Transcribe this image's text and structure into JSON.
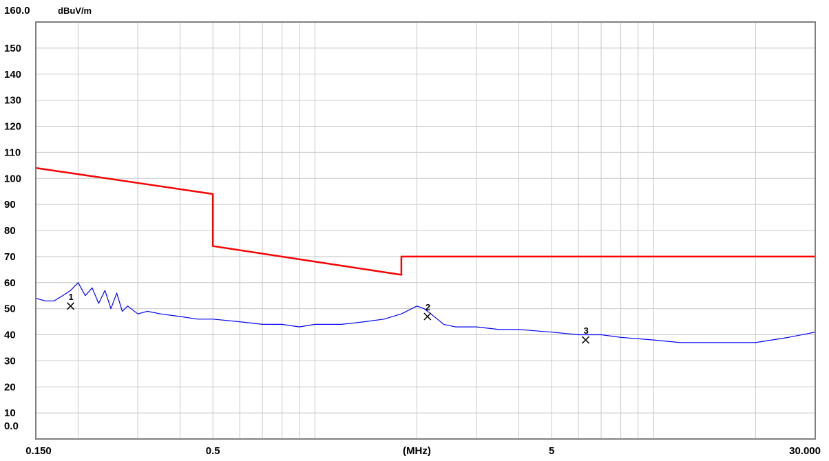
{
  "chart_data": {
    "type": "line",
    "y_unit": "dBuV/m",
    "y_top_label": "160.0",
    "y_bottom_label": "0.0",
    "xlabel": "(MHz)",
    "x_scale": "log",
    "xlim": [
      0.15,
      30
    ],
    "ylim": [
      0,
      160
    ],
    "grid": true,
    "y_ticks": [
      10,
      20,
      30,
      40,
      50,
      60,
      70,
      80,
      90,
      100,
      110,
      120,
      130,
      140,
      150
    ],
    "x_tick_labels": [
      {
        "value": 0.15,
        "label": "0.150"
      },
      {
        "value": 0.5,
        "label": "0.5"
      },
      {
        "value": 2.0,
        "label": "(MHz)"
      },
      {
        "value": 5,
        "label": "5"
      },
      {
        "value": 30,
        "label": "30.000"
      }
    ],
    "colors": {
      "limit": "#ff0000",
      "measurement": "#0000ff",
      "grid": "#c8c8c8",
      "frame": "#808080"
    },
    "series": [
      {
        "kind": "limit",
        "x": [
          0.15,
          0.5,
          0.5,
          1.8,
          1.8,
          30
        ],
        "y": [
          104,
          94,
          74,
          63,
          70,
          70
        ]
      },
      {
        "kind": "measurement",
        "x": [
          0.15,
          0.16,
          0.17,
          0.18,
          0.19,
          0.2,
          0.21,
          0.22,
          0.23,
          0.24,
          0.25,
          0.26,
          0.27,
          0.28,
          0.3,
          0.32,
          0.35,
          0.4,
          0.45,
          0.5,
          0.6,
          0.7,
          0.8,
          0.9,
          1.0,
          1.2,
          1.4,
          1.6,
          1.8,
          2.0,
          2.1,
          2.2,
          2.4,
          2.6,
          3.0,
          3.5,
          4.0,
          5.0,
          6.0,
          7.0,
          8.0,
          10.0,
          12.0,
          15.0,
          20.0,
          25.0,
          30.0
        ],
        "y": [
          54,
          53,
          53,
          55,
          57,
          60,
          55,
          58,
          52,
          57,
          50,
          56,
          49,
          51,
          48,
          49,
          48,
          47,
          46,
          46,
          45,
          44,
          44,
          43,
          44,
          44,
          45,
          46,
          48,
          51,
          50,
          48,
          44,
          43,
          43,
          42,
          42,
          41,
          40,
          40,
          39,
          38,
          37,
          37,
          37,
          39,
          41
        ]
      }
    ],
    "markers": [
      {
        "label": "1",
        "x": 0.19,
        "y": 51
      },
      {
        "label": "2",
        "x": 2.15,
        "y": 47
      },
      {
        "label": "3",
        "x": 6.3,
        "y": 38
      }
    ]
  }
}
